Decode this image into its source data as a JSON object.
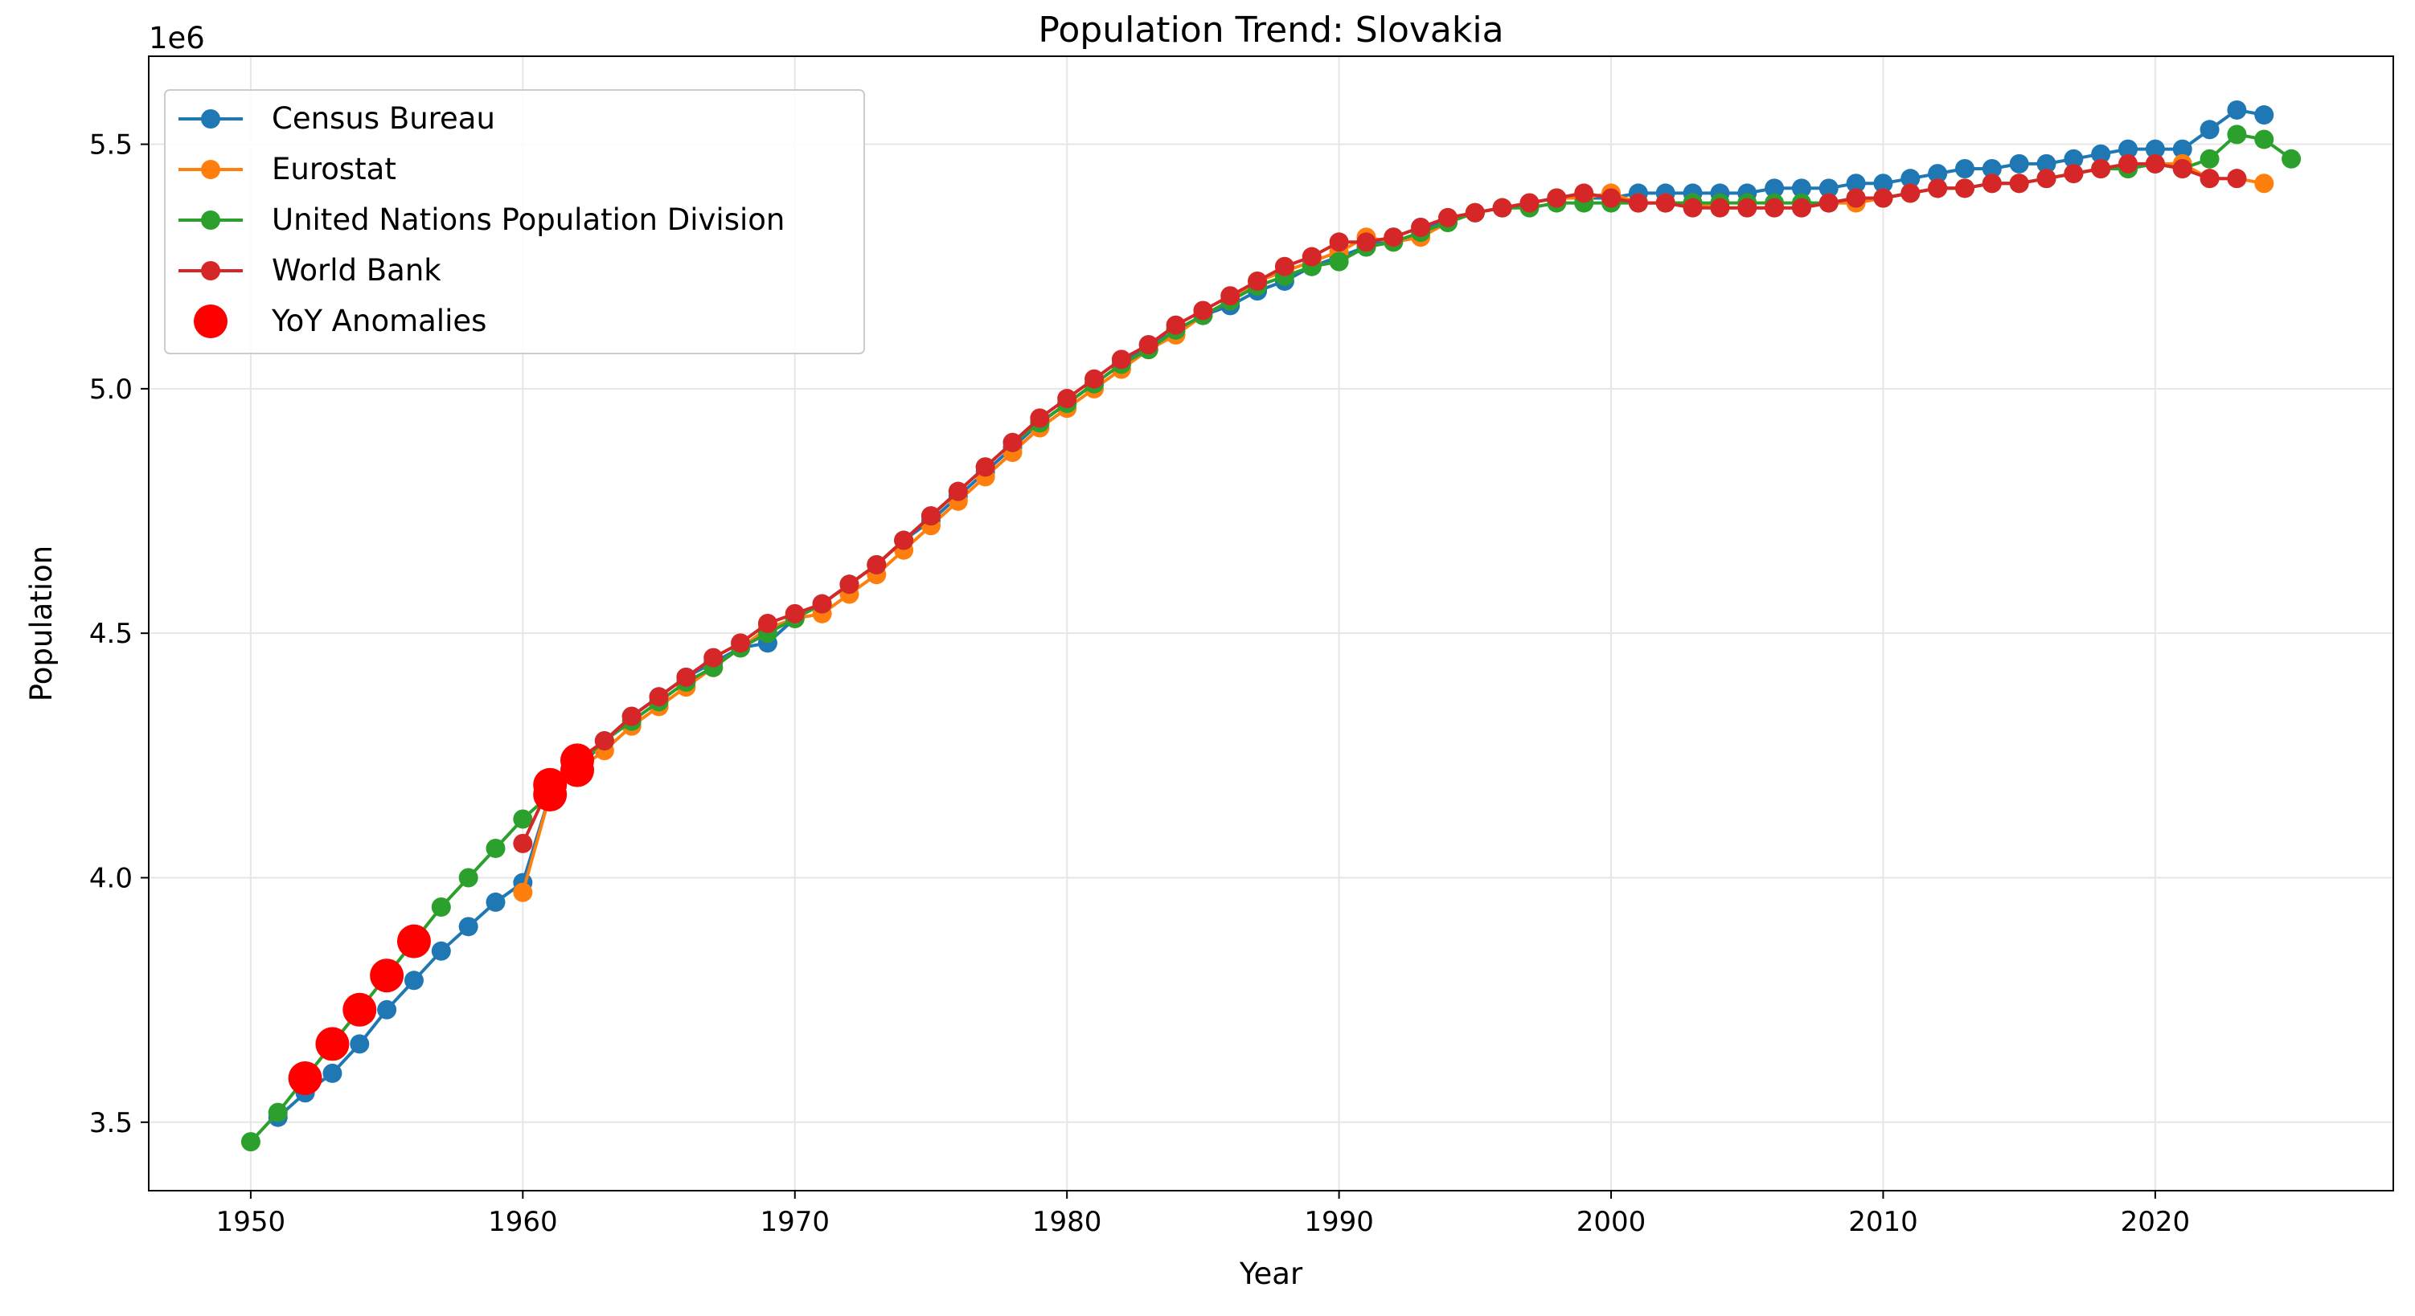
{
  "chart_data": {
    "type": "line",
    "title": "Population Trend: Slovakia",
    "xlabel": "Year",
    "ylabel": "Population",
    "y_offset_label": "1e6",
    "xlim": [
      1946.25,
      2028.75
    ],
    "ylim": [
      3.36,
      5.68
    ],
    "y_multiplier": 1000000,
    "x_ticks": [
      1950,
      1960,
      1970,
      1980,
      1990,
      2000,
      2010,
      2020
    ],
    "x_tick_labels": [
      "1950",
      "1960",
      "1970",
      "1980",
      "1990",
      "2000",
      "2010",
      "2020"
    ],
    "y_ticks": [
      3.5,
      4.0,
      4.5,
      5.0,
      5.5
    ],
    "y_tick_labels": [
      "3.5",
      "4.0",
      "4.5",
      "5.0",
      "5.5"
    ],
    "grid": true,
    "legend_position": "top-left",
    "series": [
      {
        "name": "Census Bureau",
        "color": "#1f77b4",
        "x": [
          1951,
          1952,
          1953,
          1954,
          1955,
          1956,
          1957,
          1958,
          1959,
          1960,
          1961,
          1962,
          1963,
          1964,
          1965,
          1966,
          1967,
          1968,
          1969,
          1970,
          1971,
          1972,
          1973,
          1974,
          1975,
          1976,
          1977,
          1978,
          1979,
          1980,
          1981,
          1982,
          1983,
          1984,
          1985,
          1986,
          1987,
          1988,
          1989,
          1990,
          1991,
          1992,
          1993,
          1994,
          1995,
          1996,
          1997,
          1998,
          1999,
          2000,
          2001,
          2002,
          2003,
          2004,
          2005,
          2006,
          2007,
          2008,
          2009,
          2010,
          2011,
          2012,
          2013,
          2014,
          2015,
          2016,
          2017,
          2018,
          2019,
          2020,
          2021,
          2022,
          2023,
          2024
        ],
        "y": [
          3.51,
          3.56,
          3.6,
          3.66,
          3.73,
          3.79,
          3.85,
          3.9,
          3.95,
          3.99,
          4.17,
          4.22,
          4.28,
          4.33,
          4.37,
          4.41,
          4.44,
          4.47,
          4.48,
          4.53,
          4.56,
          4.6,
          4.64,
          4.69,
          4.73,
          4.78,
          4.83,
          4.88,
          4.93,
          4.97,
          5.01,
          5.05,
          5.09,
          5.12,
          5.15,
          5.17,
          5.2,
          5.22,
          5.25,
          5.27,
          5.29,
          5.31,
          5.33,
          5.34,
          5.36,
          5.37,
          5.38,
          5.39,
          5.39,
          5.39,
          5.4,
          5.4,
          5.4,
          5.4,
          5.4,
          5.41,
          5.41,
          5.41,
          5.42,
          5.42,
          5.43,
          5.44,
          5.45,
          5.45,
          5.46,
          5.46,
          5.47,
          5.48,
          5.49,
          5.49,
          5.49,
          5.53,
          5.57,
          5.56
        ]
      },
      {
        "name": "Eurostat",
        "color": "#ff7f0e",
        "x": [
          1960,
          1961,
          1962,
          1963,
          1964,
          1965,
          1966,
          1967,
          1968,
          1969,
          1970,
          1971,
          1972,
          1973,
          1974,
          1975,
          1976,
          1977,
          1978,
          1979,
          1980,
          1981,
          1982,
          1983,
          1984,
          1985,
          1986,
          1987,
          1988,
          1989,
          1990,
          1991,
          1992,
          1993,
          1994,
          1995,
          1996,
          1997,
          1998,
          1999,
          2000,
          2001,
          2002,
          2003,
          2004,
          2005,
          2006,
          2007,
          2008,
          2009,
          2010,
          2011,
          2012,
          2013,
          2014,
          2015,
          2016,
          2017,
          2018,
          2019,
          2020,
          2021,
          2022,
          2023,
          2024
        ],
        "y": [
          3.97,
          4.17,
          4.22,
          4.26,
          4.31,
          4.35,
          4.39,
          4.43,
          4.47,
          4.51,
          4.53,
          4.54,
          4.58,
          4.62,
          4.67,
          4.72,
          4.77,
          4.82,
          4.87,
          4.92,
          4.96,
          5.0,
          5.04,
          5.08,
          5.11,
          5.15,
          5.18,
          5.22,
          5.24,
          5.26,
          5.28,
          5.31,
          5.3,
          5.31,
          5.34,
          5.36,
          5.37,
          5.38,
          5.39,
          5.39,
          5.4,
          5.38,
          5.38,
          5.38,
          5.37,
          5.37,
          5.37,
          5.37,
          5.38,
          5.38,
          5.39,
          5.4,
          5.41,
          5.41,
          5.42,
          5.42,
          5.43,
          5.44,
          5.45,
          5.45,
          5.46,
          5.46,
          5.43,
          5.43,
          5.42
        ]
      },
      {
        "name": "United Nations Population Division",
        "color": "#2ca02c",
        "x": [
          1950,
          1951,
          1952,
          1953,
          1954,
          1955,
          1956,
          1957,
          1958,
          1959,
          1960,
          1961,
          1962,
          1963,
          1964,
          1965,
          1966,
          1967,
          1968,
          1969,
          1970,
          1971,
          1972,
          1973,
          1974,
          1975,
          1976,
          1977,
          1978,
          1979,
          1980,
          1981,
          1982,
          1983,
          1984,
          1985,
          1986,
          1987,
          1988,
          1989,
          1990,
          1991,
          1992,
          1993,
          1994,
          1995,
          1996,
          1997,
          1998,
          1999,
          2000,
          2001,
          2002,
          2003,
          2004,
          2005,
          2006,
          2007,
          2008,
          2009,
          2010,
          2011,
          2012,
          2013,
          2014,
          2015,
          2016,
          2017,
          2018,
          2019,
          2020,
          2021,
          2022,
          2023,
          2024,
          2025
        ],
        "y": [
          3.46,
          3.52,
          3.59,
          3.66,
          3.73,
          3.8,
          3.87,
          3.94,
          4.0,
          4.06,
          4.12,
          4.17,
          4.23,
          4.28,
          4.32,
          4.36,
          4.4,
          4.43,
          4.47,
          4.5,
          4.53,
          4.56,
          4.6,
          4.64,
          4.69,
          4.74,
          4.79,
          4.84,
          4.89,
          4.93,
          4.97,
          5.01,
          5.05,
          5.08,
          5.12,
          5.15,
          5.18,
          5.21,
          5.23,
          5.25,
          5.26,
          5.29,
          5.3,
          5.32,
          5.34,
          5.36,
          5.37,
          5.37,
          5.38,
          5.38,
          5.38,
          5.38,
          5.38,
          5.38,
          5.38,
          5.38,
          5.38,
          5.38,
          5.38,
          5.39,
          5.39,
          5.4,
          5.41,
          5.41,
          5.42,
          5.42,
          5.43,
          5.44,
          5.45,
          5.45,
          5.46,
          5.45,
          5.47,
          5.52,
          5.51,
          5.47
        ]
      },
      {
        "name": "World Bank",
        "color": "#d62728",
        "x": [
          1960,
          1961,
          1962,
          1963,
          1964,
          1965,
          1966,
          1967,
          1968,
          1969,
          1970,
          1971,
          1972,
          1973,
          1974,
          1975,
          1976,
          1977,
          1978,
          1979,
          1980,
          1981,
          1982,
          1983,
          1984,
          1985,
          1986,
          1987,
          1988,
          1989,
          1990,
          1991,
          1992,
          1993,
          1994,
          1995,
          1996,
          1997,
          1998,
          1999,
          2000,
          2001,
          2002,
          2003,
          2004,
          2005,
          2006,
          2007,
          2008,
          2009,
          2010,
          2011,
          2012,
          2013,
          2014,
          2015,
          2016,
          2017,
          2018,
          2019,
          2020,
          2021,
          2022,
          2023
        ],
        "y": [
          4.07,
          4.19,
          4.24,
          4.28,
          4.33,
          4.37,
          4.41,
          4.45,
          4.48,
          4.52,
          4.54,
          4.56,
          4.6,
          4.64,
          4.69,
          4.74,
          4.79,
          4.84,
          4.89,
          4.94,
          4.98,
          5.02,
          5.06,
          5.09,
          5.13,
          5.16,
          5.19,
          5.22,
          5.25,
          5.27,
          5.3,
          5.3,
          5.31,
          5.33,
          5.35,
          5.36,
          5.37,
          5.38,
          5.39,
          5.4,
          5.39,
          5.38,
          5.38,
          5.37,
          5.37,
          5.37,
          5.37,
          5.37,
          5.38,
          5.39,
          5.39,
          5.4,
          5.41,
          5.41,
          5.42,
          5.42,
          5.43,
          5.44,
          5.45,
          5.46,
          5.46,
          5.45,
          5.43,
          5.43
        ]
      }
    ],
    "anomalies": {
      "name": "YoY Anomalies",
      "color": "#ff0000",
      "x": [
        1952,
        1953,
        1954,
        1955,
        1956,
        1961,
        1961,
        1962,
        1962
      ],
      "y": [
        3.59,
        3.66,
        3.73,
        3.8,
        3.87,
        4.17,
        4.19,
        4.22,
        4.24
      ]
    }
  }
}
